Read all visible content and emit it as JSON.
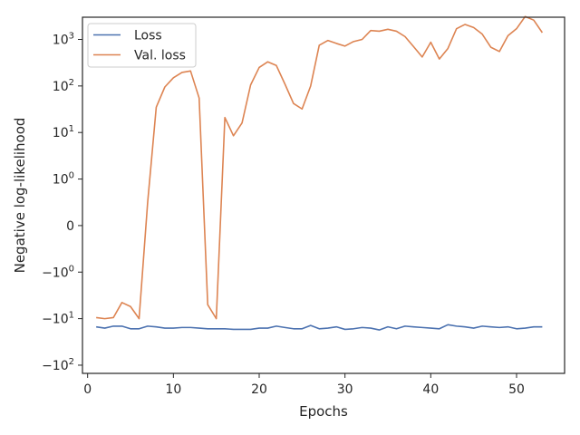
{
  "chart_data": {
    "type": "line",
    "title": "",
    "xlabel": "Epochs",
    "ylabel": "Negative log-likelihood",
    "yscale": "symlog",
    "x_ticks": [
      0,
      10,
      20,
      30,
      40,
      50
    ],
    "y_ticks": [
      {
        "value": 1000,
        "base": "10",
        "exp": "3"
      },
      {
        "value": 100,
        "base": "10",
        "exp": "2"
      },
      {
        "value": 10,
        "base": "10",
        "exp": "1"
      },
      {
        "value": 1,
        "base": "10",
        "exp": "0"
      },
      {
        "value": 0,
        "base": "0",
        "exp": ""
      },
      {
        "value": -1,
        "base": "−10",
        "exp": "0"
      },
      {
        "value": -10,
        "base": "−10",
        "exp": "1"
      },
      {
        "value": -100,
        "base": "−10",
        "exp": "2"
      }
    ],
    "xlim": [
      -0.6,
      55.6
    ],
    "ylim": [
      -150,
      3000
    ],
    "grid": false,
    "legend_position": "upper-left",
    "x": [
      1,
      2,
      3,
      4,
      5,
      6,
      7,
      8,
      9,
      10,
      11,
      12,
      13,
      14,
      15,
      16,
      17,
      18,
      19,
      20,
      21,
      22,
      23,
      24,
      25,
      26,
      27,
      28,
      29,
      30,
      31,
      32,
      33,
      34,
      35,
      36,
      37,
      38,
      39,
      40,
      41,
      42,
      43,
      44,
      45,
      46,
      47,
      48,
      49,
      50,
      51,
      52,
      53
    ],
    "series": [
      {
        "name": "Loss",
        "color": "#4c72b0",
        "values": [
          -15,
          -16,
          -14.5,
          -14.5,
          -16.5,
          -16.5,
          -14.5,
          -15,
          -16,
          -16,
          -15.5,
          -15.5,
          -16,
          -16.5,
          -16.5,
          -16.5,
          -17,
          -17,
          -17,
          -16,
          -16,
          -14.5,
          -15.5,
          -16.5,
          -16.5,
          -14,
          -16.5,
          -16,
          -15,
          -17,
          -16.5,
          -15.5,
          -16,
          -17.5,
          -15,
          -16.5,
          -14.5,
          -15,
          -15.5,
          -16,
          -16.5,
          -13.5,
          -14.5,
          -15,
          -16,
          -14.5,
          -15,
          -15.5,
          -15,
          -16.5,
          -16,
          -15,
          -15
        ]
      },
      {
        "name": "Val. loss",
        "color": "#dd8452",
        "values": [
          -9.5,
          -10,
          -9.5,
          -4.5,
          -5.5,
          -10,
          0.5,
          35,
          95,
          150,
          195,
          210,
          55,
          -5,
          -10,
          21,
          8.5,
          16,
          105,
          250,
          330,
          275,
          110,
          42,
          32,
          100,
          750,
          950,
          820,
          720,
          900,
          1000,
          1550,
          1500,
          1650,
          1500,
          1150,
          700,
          420,
          870,
          380,
          640,
          1700,
          2100,
          1800,
          1300,
          680,
          550,
          1200,
          1700,
          3100,
          2600,
          1400
        ]
      }
    ]
  }
}
